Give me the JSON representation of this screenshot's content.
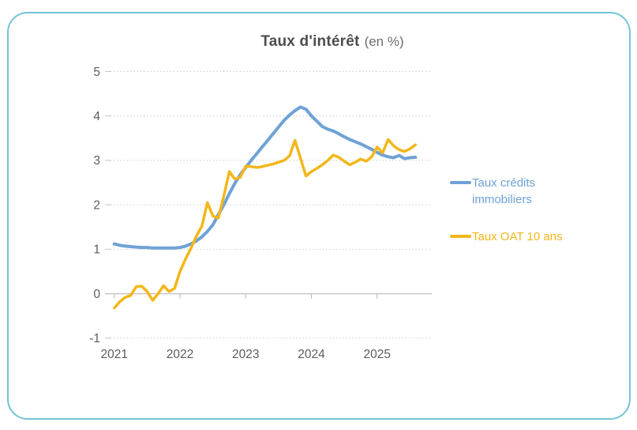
{
  "frame": {
    "border_color": "#74c4d5"
  },
  "title": {
    "main": "Taux d'intérêt",
    "suffix": "(en %)"
  },
  "legend": [
    {
      "label": "Taux crédits immobiliers",
      "color": "#6ea2d6"
    },
    {
      "label": "Taux OAT 10 ans",
      "color": "#f3b71b"
    }
  ],
  "chart_data": {
    "type": "line",
    "title": "Taux d'intérêt (en %)",
    "xlabel": "",
    "ylabel": "",
    "x_start_year": 2021,
    "points_per_year": 12,
    "x_tick_labels": [
      "2021",
      "2022",
      "2023",
      "2024",
      "2025"
    ],
    "y_ticks": [
      5,
      4,
      3,
      2,
      1,
      0,
      -1
    ],
    "ylim": [
      -1,
      5
    ],
    "grid": "horizontal dotted, solid zero line",
    "legend_position": "right",
    "series": [
      {
        "name": "Taux crédits immobiliers",
        "color": "#6ea2d6",
        "values": [
          1.12,
          1.09,
          1.07,
          1.06,
          1.05,
          1.04,
          1.04,
          1.03,
          1.03,
          1.03,
          1.03,
          1.03,
          1.04,
          1.07,
          1.12,
          1.19,
          1.28,
          1.4,
          1.55,
          1.78,
          2.0,
          2.25,
          2.48,
          2.68,
          2.84,
          3.0,
          3.15,
          3.3,
          3.45,
          3.6,
          3.75,
          3.9,
          4.02,
          4.12,
          4.2,
          4.15,
          4.0,
          3.88,
          3.76,
          3.7,
          3.66,
          3.6,
          3.53,
          3.47,
          3.42,
          3.37,
          3.31,
          3.25,
          3.18,
          3.12,
          3.08,
          3.06,
          3.11,
          3.04,
          3.06,
          3.07
        ]
      },
      {
        "name": "Taux OAT 10 ans",
        "color": "#f3b71b",
        "values": [
          -0.32,
          -0.18,
          -0.08,
          -0.04,
          0.16,
          0.17,
          0.05,
          -0.15,
          0.0,
          0.18,
          0.05,
          0.12,
          0.5,
          0.78,
          1.02,
          1.3,
          1.52,
          2.05,
          1.75,
          1.7,
          2.2,
          2.75,
          2.58,
          2.62,
          2.87,
          2.86,
          2.84,
          2.86,
          2.89,
          2.92,
          2.96,
          3.0,
          3.1,
          3.45,
          3.05,
          2.65,
          2.75,
          2.82,
          2.9,
          3.0,
          3.12,
          3.07,
          2.98,
          2.9,
          2.96,
          3.03,
          2.98,
          3.08,
          3.3,
          3.17,
          3.47,
          3.33,
          3.24,
          3.2,
          3.26,
          3.35
        ]
      }
    ]
  }
}
